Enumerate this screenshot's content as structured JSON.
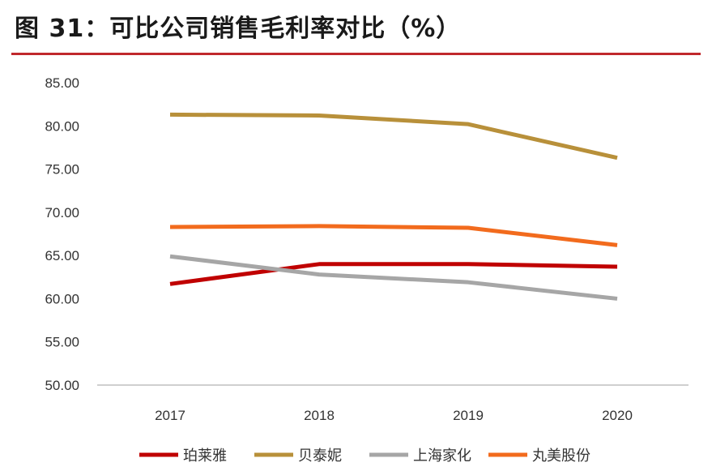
{
  "figure": {
    "title": "图 31：可比公司销售毛利率对比（%）",
    "rule_color": "#c0282c"
  },
  "chart_data": {
    "type": "line",
    "categories": [
      "2017",
      "2018",
      "2019",
      "2020"
    ],
    "y_ticks": [
      "50.00",
      "55.00",
      "60.00",
      "65.00",
      "70.00",
      "75.00",
      "80.00",
      "85.00"
    ],
    "ylim": [
      50,
      85
    ],
    "grid": false,
    "legend_position": "bottom",
    "series": [
      {
        "name": "珀莱雅",
        "color": "#c00000",
        "values": [
          61.7,
          64.0,
          64.0,
          63.7
        ]
      },
      {
        "name": "贝泰妮",
        "color": "#b8903a",
        "values": [
          81.3,
          81.2,
          80.2,
          76.3
        ]
      },
      {
        "name": "上海家化",
        "color": "#a6a6a6",
        "values": [
          64.9,
          62.8,
          61.9,
          60.0
        ]
      },
      {
        "name": "丸美股份",
        "color": "#f26b1d",
        "values": [
          68.3,
          68.4,
          68.2,
          66.2
        ]
      }
    ]
  }
}
